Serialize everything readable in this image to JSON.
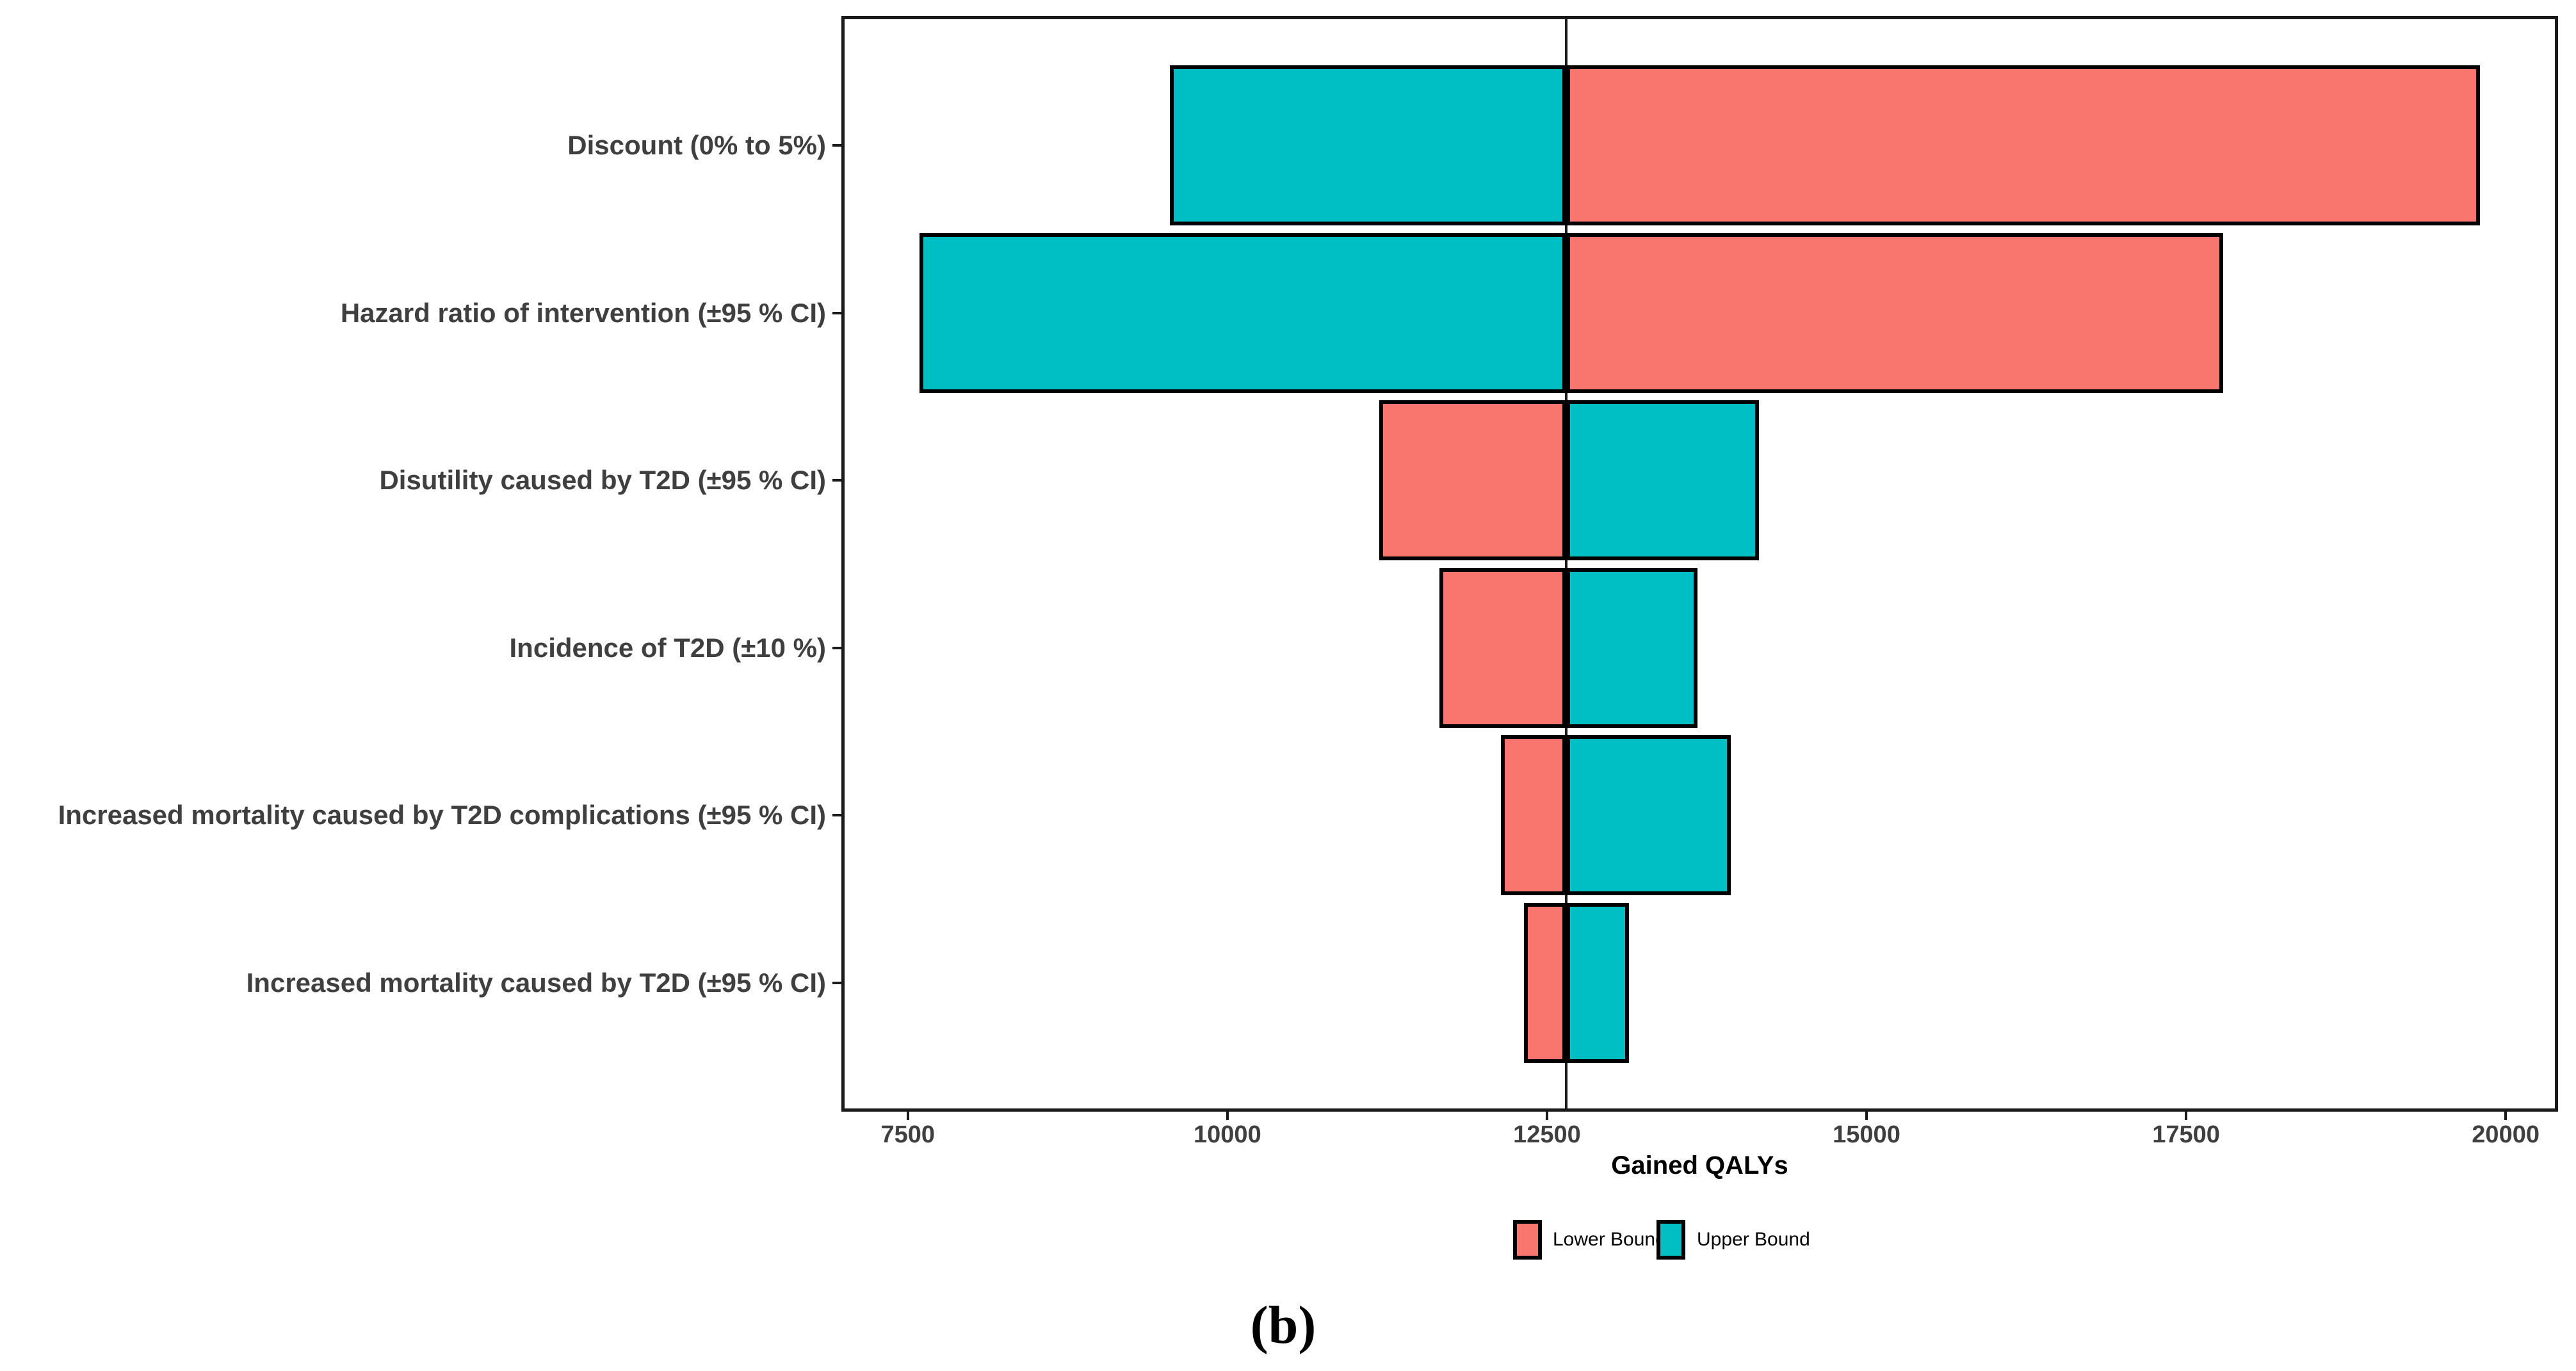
{
  "figure": {
    "caption": "(b)",
    "background": "#ffffff"
  },
  "chart_data": {
    "type": "bar",
    "subtype": "tornado",
    "orientation": "horizontal",
    "title": "",
    "xlabel": "Gained QALYs",
    "ylabel": "",
    "grid": false,
    "legend_position": "bottom",
    "baseline": 12650,
    "xlim": [
      6980,
      20410
    ],
    "x_ticks": [
      7500,
      10000,
      12500,
      15000,
      17500,
      20000
    ],
    "categories": [
      "Discount (0% to 5%)",
      "Hazard ratio of intervention (±95 % CI)",
      "Disutility caused by T2D (±95 % CI)",
      "Incidence of T2D (±10 %)",
      "Increased mortality caused by T2D complications (±95 % CI)",
      "Increased mortality caused by T2D (±95 % CI)"
    ],
    "series": [
      {
        "name": "Lower Bound",
        "color": "#F8766D",
        "values": [
          19800,
          17790,
          11190,
          11660,
          12140,
          12320
        ]
      },
      {
        "name": "Upper Bound",
        "color": "#00BFC4",
        "values": [
          9550,
          7590,
          14160,
          13680,
          13940,
          13140
        ]
      }
    ],
    "colors": {
      "bar_border": "#000000",
      "panel_border": "#1a1a1a",
      "baseline_line": "#1a1a1a",
      "axis_text": "#3f3f3f",
      "axis_title_text": "#000000"
    }
  }
}
